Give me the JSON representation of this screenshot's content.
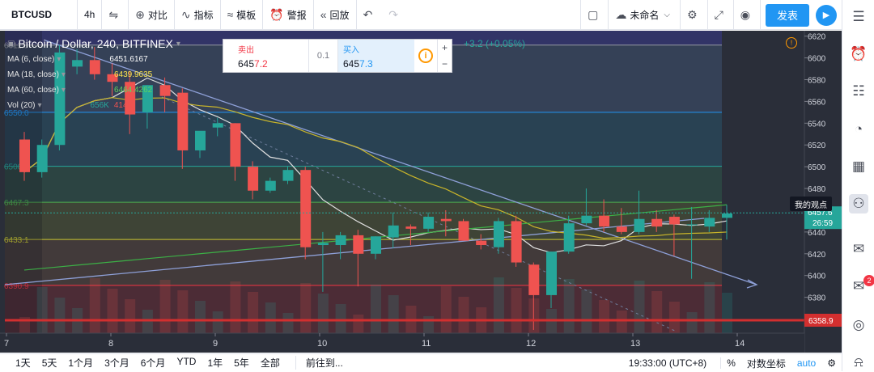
{
  "toolbar": {
    "symbol": "BTCUSD",
    "interval": "4h",
    "compare_label": "对比",
    "indicators_label": "指标",
    "templates_label": "模板",
    "alert_label": "警报",
    "replay_label": "回放",
    "layout_name": "未命名",
    "publish_label": "发表"
  },
  "legend": {
    "title": "Bitcoin / Dollar, 240, BITFINEX",
    "change": "+3.2 (+0.05%)",
    "ma6_label": "MA (6, close)",
    "ma6_value": "6451.6167",
    "ma18_label": "MA (18, close)",
    "ma18_value": "6439.9635",
    "ma60_label": "MA (60, close)",
    "ma60_value": "6464.4262",
    "vol_label": "Vol (20)",
    "vol_value1": "656K",
    "vol_value2": "414K"
  },
  "trade": {
    "sell_label": "卖出",
    "sell_price_main": "645",
    "sell_price_tail": "7.2",
    "spread": "0.1",
    "buy_label": "买入",
    "buy_price_main": "645",
    "buy_price_tail": "7.3"
  },
  "my_view_label": "我的观点",
  "chart_data": {
    "type": "candlestick",
    "title": "Bitcoin / Dollar, 240, BITFINEX",
    "ylim": [
      6347,
      6622
    ],
    "y_ticks": [
      6620,
      6600,
      6580,
      6560,
      6540,
      6520,
      6500,
      6480,
      6460,
      6440,
      6420,
      6400,
      6380
    ],
    "x_ticks": [
      "7",
      "8",
      "9",
      "10",
      "11",
      "12",
      "13",
      "14"
    ],
    "candles": [
      {
        "o": 6525,
        "h": 6532,
        "l": 6487,
        "c": 6495
      },
      {
        "o": 6495,
        "h": 6525,
        "l": 6490,
        "c": 6520
      },
      {
        "o": 6520,
        "h": 6612,
        "l": 6515,
        "c": 6605
      },
      {
        "o": 6592,
        "h": 6608,
        "l": 6585,
        "c": 6598
      },
      {
        "o": 6598,
        "h": 6610,
        "l": 6580,
        "c": 6585
      },
      {
        "o": 6585,
        "h": 6595,
        "l": 6565,
        "c": 6578
      },
      {
        "o": 6578,
        "h": 6588,
        "l": 6530,
        "c": 6548
      },
      {
        "o": 6550,
        "h": 6575,
        "l": 6535,
        "c": 6575
      },
      {
        "o": 6575,
        "h": 6582,
        "l": 6550,
        "c": 6565
      },
      {
        "o": 6568,
        "h": 6572,
        "l": 6498,
        "c": 6515
      },
      {
        "o": 6515,
        "h": 6532,
        "l": 6508,
        "c": 6533
      },
      {
        "o": 6536,
        "h": 6545,
        "l": 6528,
        "c": 6540
      },
      {
        "o": 6540,
        "h": 6540,
        "l": 6487,
        "c": 6500
      },
      {
        "o": 6500,
        "h": 6505,
        "l": 6470,
        "c": 6478
      },
      {
        "o": 6478,
        "h": 6490,
        "l": 6476,
        "c": 6487
      },
      {
        "o": 6487,
        "h": 6500,
        "l": 6484,
        "c": 6497
      },
      {
        "o": 6497,
        "h": 6500,
        "l": 6415,
        "c": 6426
      },
      {
        "o": 6428,
        "h": 6440,
        "l": 6385,
        "c": 6430
      },
      {
        "o": 6428,
        "h": 6440,
        "l": 6415,
        "c": 6437
      },
      {
        "o": 6437,
        "h": 6442,
        "l": 6390,
        "c": 6420
      },
      {
        "o": 6420,
        "h": 6436,
        "l": 6415,
        "c": 6436
      },
      {
        "o": 6435,
        "h": 6458,
        "l": 6425,
        "c": 6446
      },
      {
        "o": 6445,
        "h": 6447,
        "l": 6428,
        "c": 6443
      },
      {
        "o": 6443,
        "h": 6458,
        "l": 6440,
        "c": 6454
      },
      {
        "o": 6452,
        "h": 6460,
        "l": 6436,
        "c": 6450
      },
      {
        "o": 6450,
        "h": 6452,
        "l": 6432,
        "c": 6432
      },
      {
        "o": 6432,
        "h": 6438,
        "l": 6424,
        "c": 6428
      },
      {
        "o": 6426,
        "h": 6453,
        "l": 6420,
        "c": 6450
      },
      {
        "o": 6450,
        "h": 6455,
        "l": 6408,
        "c": 6412
      },
      {
        "o": 6410,
        "h": 6412,
        "l": 6350,
        "c": 6382
      },
      {
        "o": 6382,
        "h": 6422,
        "l": 6370,
        "c": 6422
      },
      {
        "o": 6422,
        "h": 6455,
        "l": 6420,
        "c": 6448
      },
      {
        "o": 6448,
        "h": 6480,
        "l": 6446,
        "c": 6455
      },
      {
        "o": 6455,
        "h": 6470,
        "l": 6440,
        "c": 6445
      },
      {
        "o": 6445,
        "h": 6462,
        "l": 6438,
        "c": 6440
      },
      {
        "o": 6440,
        "h": 6478,
        "l": 6438,
        "c": 6452
      },
      {
        "o": 6452,
        "h": 6460,
        "l": 6440,
        "c": 6445
      },
      {
        "o": 6454,
        "h": 6456,
        "l": 6418,
        "c": 6447
      },
      {
        "o": 6447,
        "h": 6463,
        "l": 6397,
        "c": 6447
      },
      {
        "o": 6445,
        "h": 6460,
        "l": 6440,
        "c": 6453
      },
      {
        "o": 6453,
        "h": 6465,
        "l": 6433,
        "c": 6457
      }
    ],
    "ma6_color": "#e0e0e0",
    "ma18_color": "#c8b42a",
    "ma60_color": "#3cb046",
    "fib_levels": [
      {
        "label": "6611.8",
        "price": 6611.8,
        "color": "#9598a1"
      },
      {
        "label": "6550.0",
        "price": 6550.0,
        "color": "#2196f3"
      },
      {
        "label": "6500.4",
        "price": 6500.4,
        "color": "#26a69a"
      },
      {
        "label": "6467.3",
        "price": 6467.3,
        "color": "#4caf50"
      },
      {
        "label": "6433.1",
        "price": 6433.1,
        "color": "#c8c832"
      },
      {
        "label": "6390.9",
        "price": 6390.9,
        "color": "#f23645"
      }
    ],
    "current_price_label": "6457.6",
    "countdown": "26:59",
    "hline_label": "6358.9",
    "hline_price": 6358.9
  },
  "bottom": {
    "ranges": [
      "1天",
      "5天",
      "1个月",
      "3个月",
      "6个月",
      "YTD",
      "1年",
      "5年",
      "全部"
    ],
    "goto_label": "前往到...",
    "time": "19:33:00 (UTC+8)",
    "pct": "%",
    "log": "对数坐标",
    "auto": "auto"
  }
}
